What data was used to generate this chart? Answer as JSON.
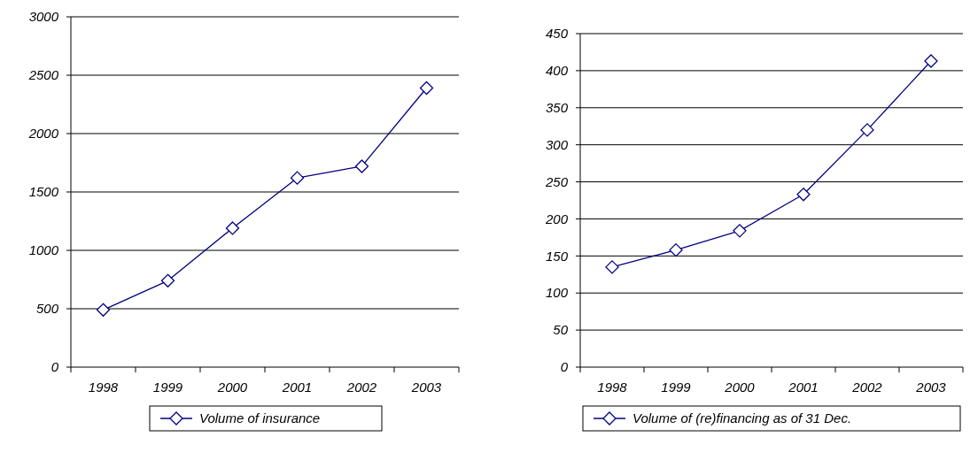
{
  "chart_data": [
    {
      "type": "line",
      "categories": [
        "1998",
        "1999",
        "2000",
        "2001",
        "2002",
        "2003"
      ],
      "series": [
        {
          "name": "Volume of insurance",
          "color": "#000080",
          "values": [
            490,
            740,
            1190,
            1620,
            1720,
            2390
          ]
        }
      ],
      "ylim": [
        0,
        3000
      ],
      "yticks": [
        0,
        500,
        1000,
        1500,
        2000,
        2500,
        3000
      ],
      "grid": "y",
      "legend": "bottom",
      "marker": "diamond"
    },
    {
      "type": "line",
      "categories": [
        "1998",
        "1999",
        "2000",
        "2001",
        "2002",
        "2003"
      ],
      "series": [
        {
          "name": "Volume of (re)financing as of 31 Dec.",
          "color": "#000080",
          "values": [
            135,
            158,
            184,
            233,
            320,
            413
          ]
        }
      ],
      "ylim": [
        0,
        450
      ],
      "yticks": [
        0,
        50,
        100,
        150,
        200,
        250,
        300,
        350,
        400,
        450
      ],
      "grid": "y",
      "legend": "bottom",
      "marker": "diamond"
    }
  ]
}
